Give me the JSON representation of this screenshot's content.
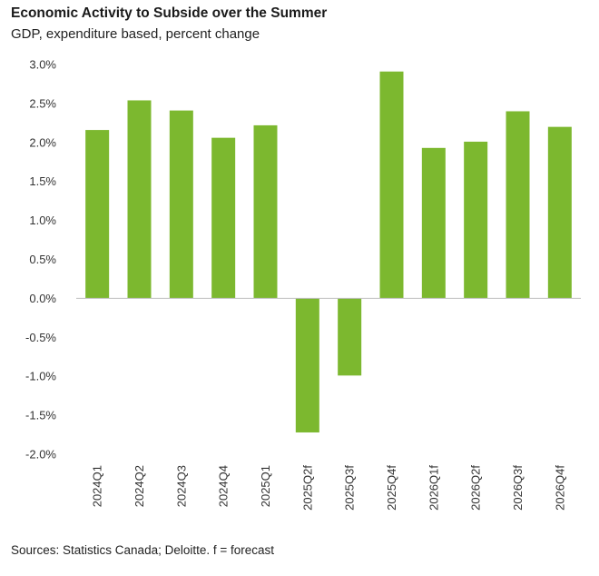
{
  "chart_data": {
    "type": "bar",
    "title": "Economic Activity to Subside over the Summer",
    "subtitle": "GDP, expenditure based, percent change",
    "source": "Sources: Statistics Canada; Deloitte. f = forecast",
    "categories": [
      "2024Q1",
      "2024Q2",
      "2024Q3",
      "2024Q4",
      "2025Q1",
      "2025Q2f",
      "2025Q3f",
      "2025Q4f",
      "2026Q1f",
      "2026Q2f",
      "2026Q3f",
      "2026Q4f"
    ],
    "values": [
      2.16,
      2.54,
      2.41,
      2.06,
      2.22,
      -1.72,
      -0.99,
      2.91,
      1.93,
      2.01,
      2.4,
      2.2
    ],
    "ylim": [
      -2.0,
      3.0
    ],
    "yticks": [
      "3.0%",
      "2.5%",
      "2.0%",
      "1.5%",
      "1.0%",
      "0.5%",
      "0.0%",
      "-0.5%",
      "-1.0%",
      "-1.5%",
      "-2.0%"
    ],
    "ytick_values": [
      3.0,
      2.5,
      2.0,
      1.5,
      1.0,
      0.5,
      0.0,
      -0.5,
      -1.0,
      -1.5,
      -2.0
    ],
    "bar_color": "#7cb82f",
    "axis_color": "#bfbfbf",
    "grid": false,
    "legend": "none"
  }
}
